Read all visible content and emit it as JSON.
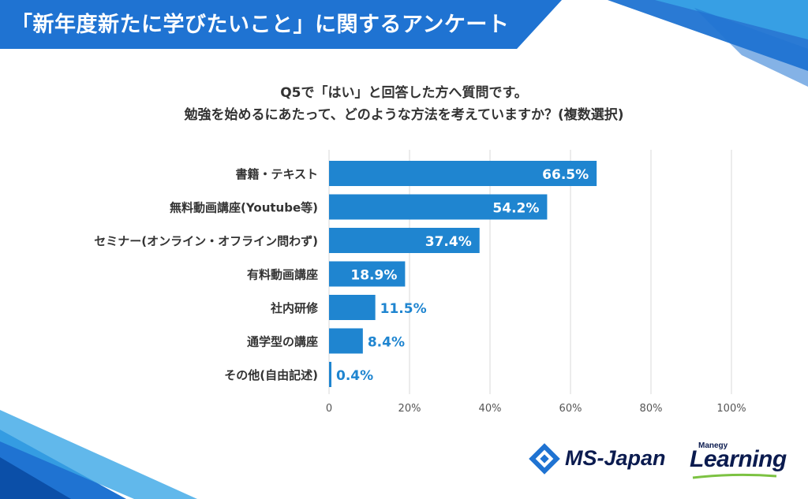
{
  "header": {
    "title": "「新年度新たに学びたいこと」に関するアンケート"
  },
  "question": {
    "line1": "Q5で「はい」と回答した方へ質問です。",
    "line2": "勉強を始めるにあたって、どのような方法を考えていますか？(複数選択)"
  },
  "colors": {
    "bar": "#1f85d0",
    "banner": "#1f73d2",
    "label_outside": "#1f85d0",
    "label_inside": "#ffffff",
    "grid": "#d9d9d9",
    "text": "#333333",
    "logo_navy": "#0b1b4f"
  },
  "chart_data": {
    "type": "bar",
    "orientation": "horizontal",
    "categories": [
      "書籍・テキスト",
      "無料動画講座(Youtube等)",
      "セミナー(オンライン・オフライン問わず)",
      "有料動画講座",
      "社内研修",
      "通学型の講座",
      "その他(自由記述)"
    ],
    "values": [
      66.5,
      54.2,
      37.4,
      18.9,
      11.5,
      8.4,
      0.4
    ],
    "value_labels": [
      "66.5%",
      "54.2%",
      "37.4%",
      "18.9%",
      "11.5%",
      "8.4%",
      "0.4%"
    ],
    "xlim": [
      0,
      100
    ],
    "x_ticks": [
      0,
      20,
      40,
      60,
      80,
      100
    ],
    "x_tick_labels": [
      "0",
      "20%",
      "40%",
      "60%",
      "80%",
      "100%"
    ],
    "grid": true,
    "legend": "none"
  },
  "footer": {
    "logo1": "MS-Japan",
    "logo2_small": "Manegy",
    "logo2_big": "Learning"
  }
}
